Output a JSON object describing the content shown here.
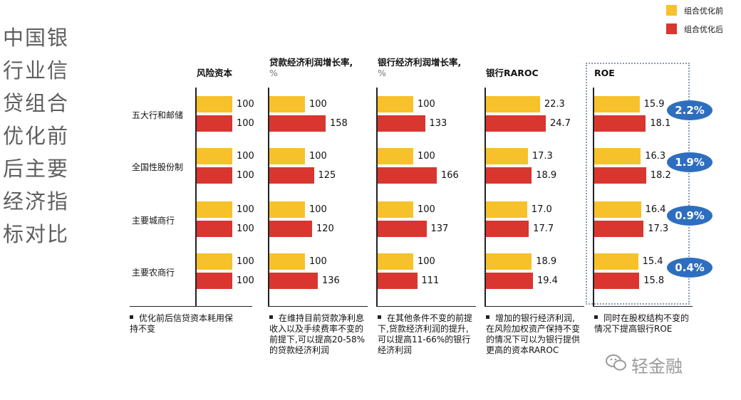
{
  "side_title": "中国银行业信贷组合优化前后主要经济指标对比",
  "legend": [
    {
      "label": "组合优化前",
      "color": "#F7C12C"
    },
    {
      "label": "组合优化后",
      "color": "#D8362F"
    }
  ],
  "chart_data": {
    "type": "bar",
    "orientation": "horizontal",
    "categories": [
      "五大行和邮储",
      "全国性股份制",
      "主要城商行",
      "主要农商行"
    ],
    "series_names": [
      "组合优化前",
      "组合优化后"
    ],
    "series_colors": [
      "#F7C12C",
      "#D8362F"
    ],
    "panels": [
      {
        "title": "风险资本",
        "unit": "",
        "before": [
          "100",
          "100",
          "100",
          "100"
        ],
        "after": [
          "100",
          "100",
          "100",
          "100"
        ],
        "note": "优化前后信贷资本耗用保持不变"
      },
      {
        "title": "贷款经济利润增长率,",
        "unit": "%",
        "before": [
          "100",
          "100",
          "100",
          "100"
        ],
        "after": [
          "158",
          "125",
          "120",
          "136"
        ],
        "note": "在维持目前贷款净利息收入以及手续费率不变的前提下,可以提高20-58%的贷款经济利润"
      },
      {
        "title": "银行经济利润增长率,",
        "unit": "%",
        "before": [
          "100",
          "100",
          "100",
          "100"
        ],
        "after": [
          "133",
          "166",
          "137",
          "111"
        ],
        "note": "在其他条件不变的前提下,贷款经济利润的提升, 可以提高11-66%的银行经济利润"
      },
      {
        "title": "银行RAROC",
        "unit": "",
        "before": [
          "22.3",
          "17.3",
          "17.0",
          "18.9"
        ],
        "after": [
          "24.7",
          "18.9",
          "17.7",
          "19.4"
        ],
        "note": "增加的银行经济利润,在风险加权资产保持不变的情况下可以为银行提供更高的资本RAROC"
      },
      {
        "title": "ROE",
        "unit": "",
        "before": [
          "15.9",
          "16.3",
          "16.4",
          "15.4"
        ],
        "after": [
          "18.1",
          "18.2",
          "17.3",
          "15.8"
        ],
        "note": "同时在股权结构不变的情况下提高银行ROE"
      }
    ],
    "roe_increase": [
      "2.2%",
      "1.9%",
      "0.9%",
      "0.4%"
    ]
  },
  "watermark": "轻金融"
}
